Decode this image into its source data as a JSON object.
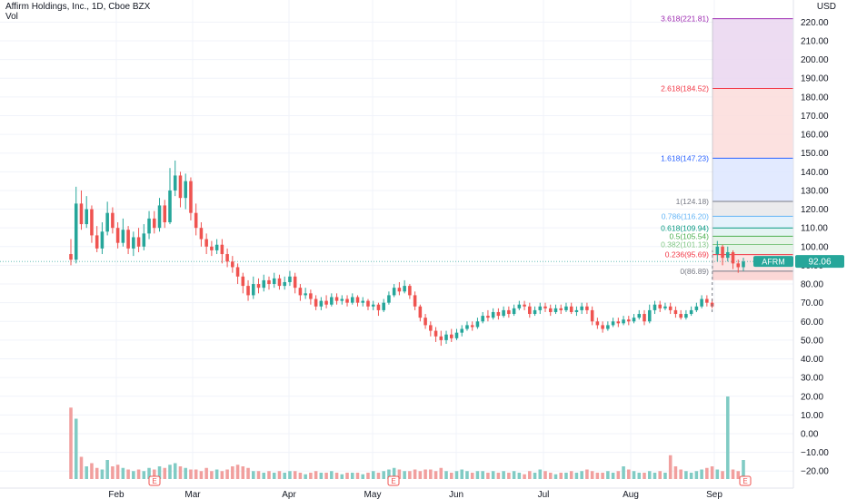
{
  "header": {
    "title": "Affirm Holdings, Inc., 1D, Cboe BZX",
    "volume_label": "Vol",
    "currency": "USD"
  },
  "colors": {
    "up": "#26a69a",
    "down": "#ef5350",
    "vol_up": "#80cbc4",
    "vol_down": "#f19f9e",
    "grid": "#f0f3fa",
    "text": "#131722"
  },
  "chart_data": {
    "type": "candlestick",
    "symbol": "AFRM",
    "last_price": "92.06",
    "price_axis": {
      "min": -25,
      "max": 230,
      "ticks": [
        "220.00",
        "210.00",
        "200.00",
        "190.00",
        "180.00",
        "170.00",
        "160.00",
        "150.00",
        "140.00",
        "130.00",
        "120.00",
        "110.00",
        "100.00",
        "90.00",
        "80.00",
        "70.00",
        "60.00",
        "50.00",
        "40.00",
        "30.00",
        "20.00",
        "10.00",
        "0.00",
        "−10.00",
        "−20.00"
      ],
      "tick_values": [
        220,
        210,
        200,
        190,
        180,
        170,
        160,
        150,
        140,
        130,
        120,
        110,
        100,
        90,
        80,
        70,
        60,
        50,
        40,
        30,
        20,
        10,
        0,
        -10,
        -20
      ]
    },
    "time_axis": {
      "labels": [
        "Feb",
        "Mar",
        "Apr",
        "May",
        "Jun",
        "Jul",
        "Aug",
        "Sep"
      ]
    },
    "earnings_markers": [
      "E",
      "E",
      "E"
    ],
    "candles": [
      [
        96,
        93,
        104,
        90
      ],
      [
        93,
        123,
        132,
        91
      ],
      [
        123,
        112,
        130,
        109
      ],
      [
        112,
        120,
        127,
        110
      ],
      [
        120,
        106,
        122,
        102
      ],
      [
        106,
        99,
        111,
        97
      ],
      [
        99,
        108,
        113,
        96
      ],
      [
        108,
        118,
        124,
        106
      ],
      [
        118,
        110,
        121,
        107
      ],
      [
        110,
        102,
        113,
        99
      ],
      [
        102,
        109,
        115,
        100
      ],
      [
        109,
        99,
        111,
        96
      ],
      [
        99,
        105,
        108,
        95
      ],
      [
        105,
        100,
        110,
        97
      ],
      [
        100,
        107,
        112,
        98
      ],
      [
        107,
        115,
        119,
        104
      ],
      [
        115,
        110,
        119,
        107
      ],
      [
        110,
        122,
        126,
        108
      ],
      [
        122,
        113,
        125,
        110
      ],
      [
        113,
        130,
        142,
        112
      ],
      [
        130,
        138,
        146,
        127
      ],
      [
        138,
        126,
        140,
        121
      ],
      [
        126,
        135,
        139,
        120
      ],
      [
        135,
        118,
        137,
        114
      ],
      [
        118,
        110,
        123,
        106
      ],
      [
        110,
        104,
        113,
        100
      ],
      [
        104,
        100,
        107,
        96
      ],
      [
        100,
        98,
        103,
        95
      ],
      [
        98,
        101,
        104,
        96
      ],
      [
        101,
        96,
        104,
        91
      ],
      [
        96,
        92,
        99,
        89
      ],
      [
        92,
        89,
        95,
        86
      ],
      [
        89,
        84,
        91,
        80
      ],
      [
        84,
        79,
        86,
        75
      ],
      [
        79,
        74,
        82,
        71
      ],
      [
        74,
        80,
        84,
        72
      ],
      [
        80,
        78,
        83,
        75
      ],
      [
        78,
        82,
        85,
        76
      ],
      [
        82,
        80,
        84,
        77
      ],
      [
        80,
        83,
        86,
        78
      ],
      [
        83,
        79,
        85,
        77
      ],
      [
        79,
        81,
        84,
        77
      ],
      [
        81,
        84,
        87,
        79
      ],
      [
        84,
        78,
        86,
        75
      ],
      [
        78,
        74,
        80,
        71
      ],
      [
        74,
        75,
        78,
        72
      ],
      [
        75,
        72,
        77,
        69
      ],
      [
        72,
        68,
        74,
        66
      ],
      [
        68,
        71,
        73,
        66
      ],
      [
        71,
        69,
        74,
        67
      ],
      [
        69,
        73,
        75,
        68
      ],
      [
        73,
        71,
        75,
        69
      ],
      [
        71,
        72,
        74,
        69
      ],
      [
        72,
        70,
        74,
        68
      ],
      [
        70,
        73,
        75,
        69
      ],
      [
        73,
        70,
        74,
        68
      ],
      [
        70,
        71,
        73,
        68
      ],
      [
        71,
        68,
        72,
        66
      ],
      [
        68,
        69,
        71,
        66
      ],
      [
        69,
        66,
        70,
        63
      ],
      [
        66,
        70,
        72,
        65
      ],
      [
        70,
        74,
        76,
        69
      ],
      [
        74,
        78,
        80,
        73
      ],
      [
        78,
        76,
        81,
        74
      ],
      [
        76,
        79,
        82,
        75
      ],
      [
        79,
        74,
        80,
        72
      ],
      [
        74,
        68,
        76,
        66
      ],
      [
        68,
        62,
        69,
        60
      ],
      [
        62,
        58,
        64,
        56
      ],
      [
        58,
        55,
        60,
        52
      ],
      [
        55,
        52,
        57,
        49
      ],
      [
        52,
        50,
        55,
        47
      ],
      [
        50,
        53,
        55,
        48
      ],
      [
        53,
        51,
        56,
        49
      ],
      [
        51,
        54,
        56,
        50
      ],
      [
        54,
        56,
        58,
        52
      ],
      [
        56,
        58,
        60,
        55
      ],
      [
        58,
        57,
        60,
        55
      ],
      [
        57,
        60,
        62,
        56
      ],
      [
        60,
        63,
        65,
        59
      ],
      [
        63,
        62,
        66,
        60
      ],
      [
        62,
        65,
        67,
        61
      ],
      [
        65,
        63,
        67,
        61
      ],
      [
        63,
        66,
        68,
        62
      ],
      [
        66,
        64,
        68,
        62
      ],
      [
        64,
        67,
        69,
        63
      ],
      [
        67,
        69,
        71,
        66
      ],
      [
        69,
        68,
        71,
        66
      ],
      [
        68,
        64,
        70,
        62
      ],
      [
        64,
        66,
        68,
        63
      ],
      [
        66,
        68,
        70,
        64
      ],
      [
        68,
        67,
        70,
        65
      ],
      [
        67,
        65,
        69,
        63
      ],
      [
        65,
        67,
        69,
        64
      ],
      [
        67,
        66,
        69,
        64
      ],
      [
        66,
        68,
        70,
        65
      ],
      [
        68,
        65,
        70,
        64
      ],
      [
        65,
        66,
        68,
        63
      ],
      [
        66,
        68,
        70,
        64
      ],
      [
        68,
        66,
        70,
        64
      ],
      [
        66,
        60,
        68,
        58
      ],
      [
        60,
        58,
        62,
        56
      ],
      [
        58,
        56,
        60,
        54
      ],
      [
        56,
        58,
        60,
        55
      ],
      [
        58,
        60,
        62,
        57
      ],
      [
        60,
        59,
        62,
        57
      ],
      [
        59,
        61,
        63,
        58
      ],
      [
        61,
        60,
        63,
        58
      ],
      [
        60,
        62,
        64,
        59
      ],
      [
        62,
        64,
        66,
        61
      ],
      [
        64,
        60,
        66,
        58
      ],
      [
        60,
        66,
        69,
        59
      ],
      [
        66,
        69,
        71,
        64
      ],
      [
        69,
        67,
        71,
        65
      ],
      [
        67,
        68,
        70,
        66
      ],
      [
        68,
        66,
        70,
        64
      ],
      [
        66,
        64,
        68,
        62
      ],
      [
        64,
        62,
        66,
        61
      ],
      [
        62,
        64,
        66,
        61
      ],
      [
        64,
        66,
        68,
        63
      ],
      [
        66,
        68,
        70,
        65
      ],
      [
        68,
        72,
        74,
        67
      ],
      [
        72,
        70,
        74,
        68
      ],
      [
        70,
        68,
        72,
        67
      ],
      [
        96,
        100,
        103,
        92
      ],
      [
        100,
        94,
        101,
        90
      ],
      [
        94,
        97,
        100,
        92
      ],
      [
        97,
        91,
        98,
        88
      ],
      [
        91,
        89,
        93,
        86
      ],
      [
        89,
        92,
        94,
        87
      ]
    ],
    "volumes": [
      45,
      38,
      14,
      8,
      10,
      7,
      6,
      12,
      8,
      9,
      7,
      6,
      5,
      6,
      5,
      7,
      6,
      8,
      7,
      9,
      10,
      8,
      7,
      6,
      6,
      5,
      7,
      5,
      6,
      5,
      6,
      8,
      9,
      8,
      7,
      5,
      5,
      4,
      5,
      4,
      5,
      4,
      5,
      5,
      4,
      3,
      4,
      5,
      4,
      4,
      5,
      4,
      3,
      4,
      4,
      4,
      3,
      4,
      5,
      4,
      5,
      6,
      7,
      6,
      5,
      5,
      6,
      5,
      6,
      6,
      5,
      7,
      5,
      4,
      5,
      6,
      5,
      4,
      5,
      5,
      4,
      5,
      4,
      5,
      4,
      5,
      4,
      3,
      5,
      4,
      6,
      5,
      4,
      3,
      4,
      4,
      5,
      4,
      5,
      6,
      5,
      4,
      4,
      5,
      4,
      5,
      8,
      6,
      5,
      4,
      4,
      5,
      4,
      5,
      4,
      15,
      8,
      6,
      5,
      4,
      5,
      6,
      7,
      8,
      6,
      5,
      52,
      6,
      5,
      12
    ],
    "fibonacci": {
      "levels": [
        {
          "label": "0(86.89)",
          "value": 86.89,
          "color": "#787b86",
          "fill": "#fbe1e0"
        },
        {
          "label": "0.236(95.69)",
          "value": 95.69,
          "color": "#f23645",
          "fill": "#fbe1e0"
        },
        {
          "label": "0.382(101.13)",
          "value": 101.13,
          "color": "#81c784",
          "fill": "#e1f2e3"
        },
        {
          "label": "0.5(105.54)",
          "value": 105.54,
          "color": "#4caf50",
          "fill": "#e1f2e3"
        },
        {
          "label": "0.618(109.94)",
          "value": 109.94,
          "color": "#089981",
          "fill": "#dff2f1"
        },
        {
          "label": "0.786(116.20)",
          "value": 116.2,
          "color": "#64b5f6",
          "fill": "#e1f0fb"
        },
        {
          "label": "1(124.18)",
          "value": 124.18,
          "color": "#787b86",
          "fill": "#e8e8ea"
        },
        {
          "label": "1.618(147.23)",
          "value": 147.23,
          "color": "#2962ff",
          "fill": "#dde6ff"
        },
        {
          "label": "2.618(184.52)",
          "value": 184.52,
          "color": "#f23645",
          "fill": "#fcdcda"
        },
        {
          "label": "3.618(221.81)",
          "value": 221.81,
          "color": "#9c27b0",
          "fill": "#ead6f0"
        }
      ]
    }
  }
}
